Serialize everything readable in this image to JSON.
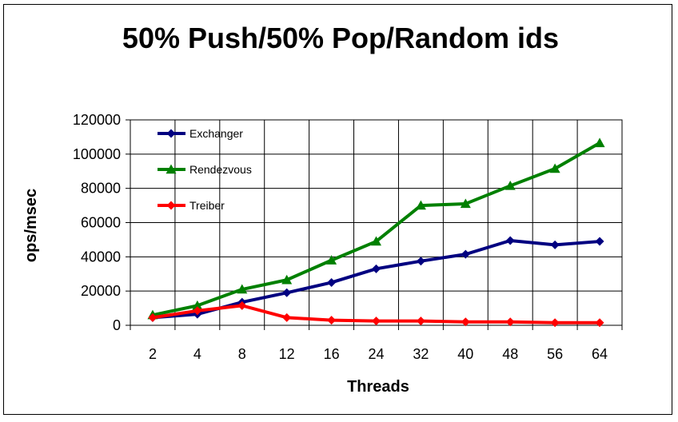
{
  "chart_data": {
    "type": "line",
    "title": "50% Push/50% Pop/Random ids",
    "xlabel": "Threads",
    "ylabel": "ops/msec",
    "categories": [
      "2",
      "4",
      "8",
      "12",
      "16",
      "24",
      "32",
      "40",
      "48",
      "56",
      "64"
    ],
    "ylim": [
      0,
      120000
    ],
    "yticks": [
      0,
      20000,
      40000,
      60000,
      80000,
      100000,
      120000
    ],
    "grid": true,
    "legend_placement": "top-left",
    "series": [
      {
        "name": "Exchanger",
        "color": "#000080",
        "marker": "diamond",
        "values": [
          4500,
          6500,
          13500,
          19000,
          25000,
          33000,
          37500,
          41500,
          49500,
          47000,
          49000
        ]
      },
      {
        "name": "Rendezvous",
        "color": "#008000",
        "marker": "triangle",
        "values": [
          6000,
          11500,
          21000,
          26500,
          38000,
          49000,
          70000,
          71000,
          81500,
          91500,
          106500
        ]
      },
      {
        "name": "Treiber",
        "color": "#ff0000",
        "marker": "diamond",
        "values": [
          4500,
          8500,
          11500,
          4500,
          3000,
          2500,
          2500,
          2000,
          2000,
          1500,
          1500
        ]
      }
    ]
  }
}
